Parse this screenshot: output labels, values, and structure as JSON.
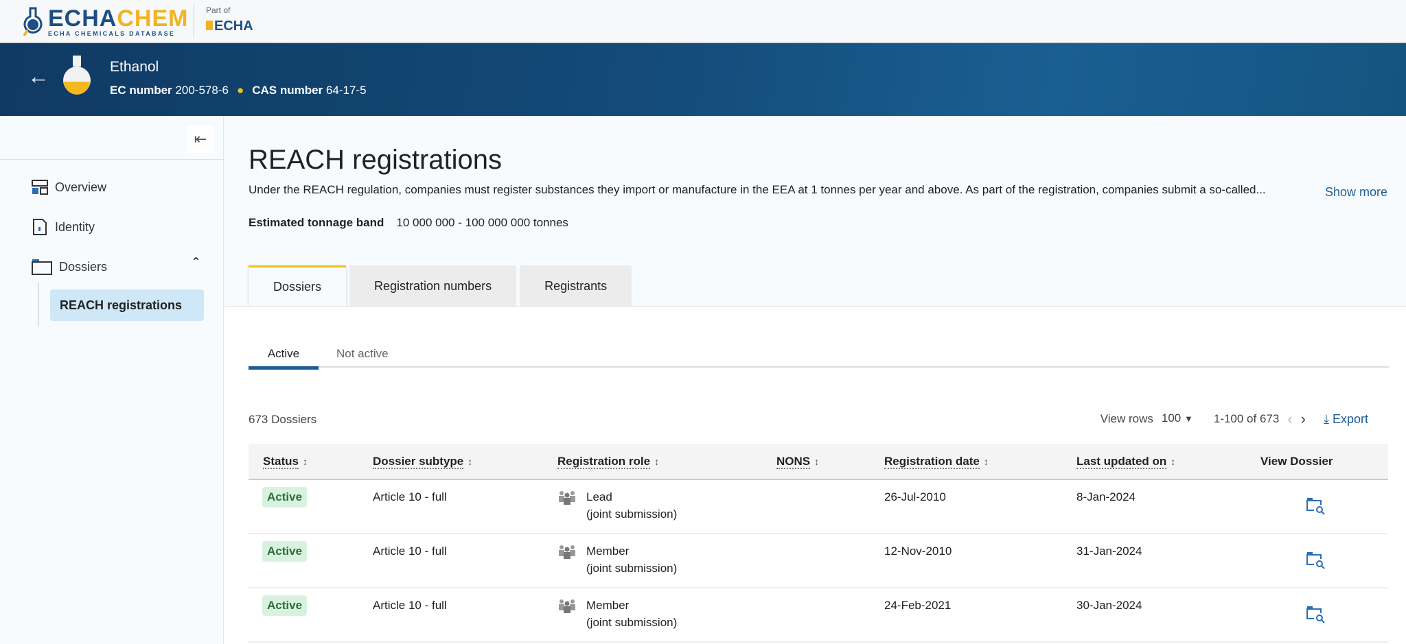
{
  "header": {
    "logo_text": "ECHACHEM",
    "logo_sub": "ECHA CHEMICALS DATABASE",
    "part_of": "Part of",
    "agency": "ECHA"
  },
  "substance": {
    "name": "Ethanol",
    "ec_label": "EC number",
    "ec": "200-578-6",
    "cas_label": "CAS number",
    "cas": "64-17-5"
  },
  "sidebar": {
    "items": [
      {
        "label": "Overview",
        "icon": "overview-icon"
      },
      {
        "label": "Identity",
        "icon": "identity-icon"
      },
      {
        "label": "Dossiers",
        "icon": "folder-icon"
      }
    ],
    "sub_items": [
      {
        "label": "REACH registrations",
        "selected": true
      }
    ]
  },
  "main": {
    "title": "REACH registrations",
    "description": "Under the REACH regulation, companies must register substances they import or manufacture in the EEA at 1 tonnes per year and above. As part of the registration, companies submit a so-called...",
    "show_more": "Show more",
    "tonnage_label": "Estimated tonnage band",
    "tonnage": "10 000 000 - 100 000 000 tonnes",
    "tabs": [
      "Dossiers",
      "Registration numbers",
      "Registrants"
    ],
    "subtabs": [
      "Active",
      "Not active"
    ],
    "count": "673 Dossiers",
    "view_rows_label": "View rows",
    "view_rows": "100",
    "range": "1-100 of 673",
    "export": "Export"
  },
  "table": {
    "headers": [
      "Status",
      "Dossier subtype",
      "Registration role",
      "NONS",
      "Registration date",
      "Last updated on",
      "View Dossier"
    ],
    "rows": [
      {
        "status": "Active",
        "subtype": "Article 10 - full",
        "role": "Lead",
        "role_note": "(joint submission)",
        "nons": "",
        "reg_date": "26-Jul-2010",
        "updated": "8-Jan-2024"
      },
      {
        "status": "Active",
        "subtype": "Article 10 - full",
        "role": "Member",
        "role_note": "(joint submission)",
        "nons": "",
        "reg_date": "12-Nov-2010",
        "updated": "31-Jan-2024"
      },
      {
        "status": "Active",
        "subtype": "Article 10 - full",
        "role": "Member",
        "role_note": "(joint submission)",
        "nons": "",
        "reg_date": "24-Feb-2021",
        "updated": "30-Jan-2024"
      }
    ]
  },
  "colors": {
    "brand_blue": "#1d4e85",
    "brand_yellow": "#f0b323",
    "link": "#1d5e96",
    "active_badge": "#d9f2df"
  }
}
